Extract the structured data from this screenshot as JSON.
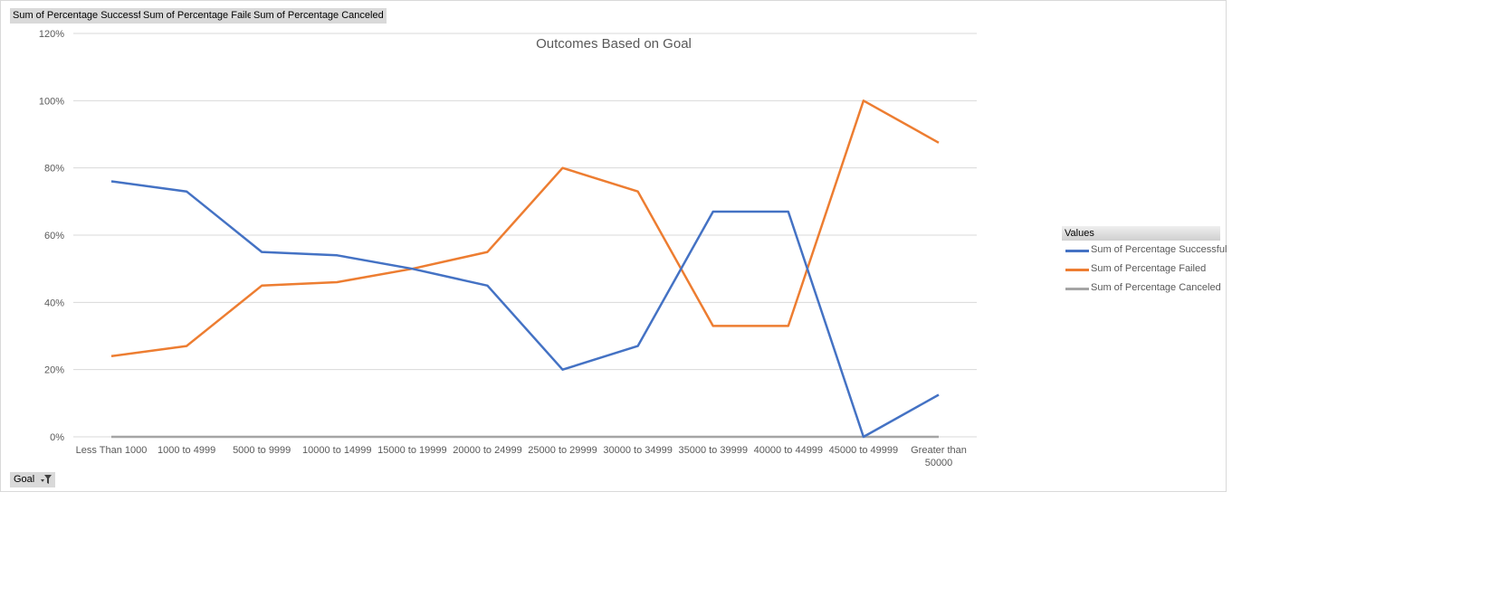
{
  "field_buttons": [
    {
      "label": "Sum of Percentage Successful"
    },
    {
      "label": "Sum of Percentage Failed"
    },
    {
      "label": "Sum of Percentage Canceled"
    }
  ],
  "goal_filter": {
    "label": "Goal",
    "icon": "filter-dropdown-icon"
  },
  "legend": {
    "header": "Values",
    "items": [
      {
        "label": "Sum of Percentage Successful",
        "color": "#4472c4"
      },
      {
        "label": "Sum of Percentage Failed",
        "color": "#ed7d31"
      },
      {
        "label": "Sum of Percentage Canceled",
        "color": "#a5a5a5"
      }
    ]
  },
  "chart_data": {
    "type": "line",
    "title": "Outcomes Based on Goal",
    "xlabel": "",
    "ylabel": "",
    "categories": [
      "Less Than 1000",
      "1000 to 4999",
      "5000 to 9999",
      "10000 to 14999",
      "15000 to 19999",
      "20000 to 24999",
      "25000 to 29999",
      "30000 to 34999",
      "35000 to 39999",
      "40000 to 44999",
      "45000 to 49999",
      "Greater than 50000"
    ],
    "ylim": [
      0,
      1.2
    ],
    "yticks": [
      0,
      0.2,
      0.4,
      0.6,
      0.8,
      1.0,
      1.2
    ],
    "ytick_labels": [
      "0%",
      "20%",
      "40%",
      "60%",
      "80%",
      "100%",
      "120%"
    ],
    "grid": true,
    "legend_position": "right",
    "series": [
      {
        "name": "Sum of Percentage Successful",
        "color": "#4472c4",
        "values": [
          0.76,
          0.73,
          0.55,
          0.54,
          0.5,
          0.45,
          0.2,
          0.27,
          0.67,
          0.67,
          0.0,
          0.125
        ]
      },
      {
        "name": "Sum of Percentage Failed",
        "color": "#ed7d31",
        "values": [
          0.24,
          0.27,
          0.45,
          0.46,
          0.5,
          0.55,
          0.8,
          0.73,
          0.33,
          0.33,
          1.0,
          0.875
        ]
      },
      {
        "name": "Sum of Percentage Canceled",
        "color": "#a5a5a5",
        "values": [
          0,
          0,
          0,
          0,
          0,
          0,
          0,
          0,
          0,
          0,
          0,
          0
        ]
      }
    ]
  }
}
